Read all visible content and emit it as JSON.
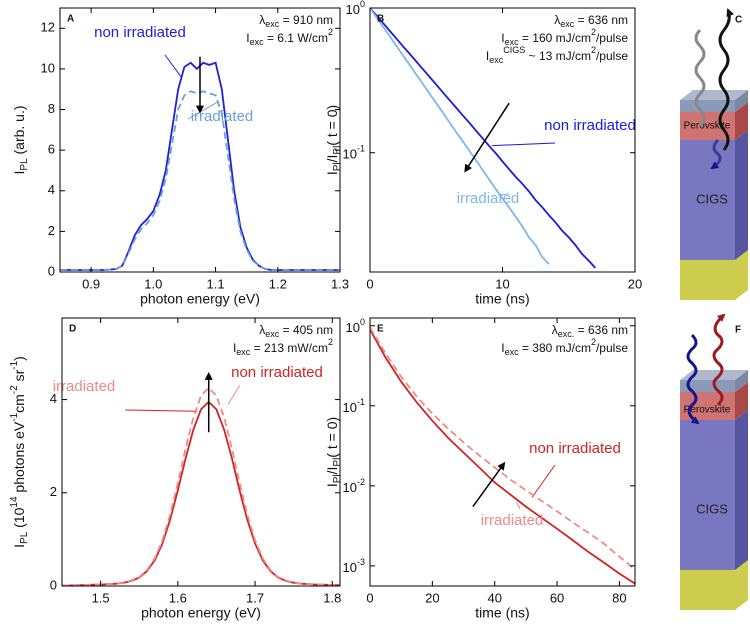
{
  "chart_data": [
    {
      "type": "line",
      "panel_label": "A",
      "xlabel": "photon energy (eV)",
      "ylabel": [
        {
          "t": "I"
        },
        {
          "t": "PL",
          "s": "sub"
        },
        {
          "t": " (arb. u.)"
        }
      ],
      "annotations": [
        [
          {
            "t": "λ"
          },
          {
            "t": "exc",
            "s": "sub"
          },
          {
            "t": " = 910 nm"
          }
        ],
        [
          {
            "t": "I"
          },
          {
            "t": "exc",
            "s": "sub"
          },
          {
            "t": " = 6.1 W/cm"
          },
          {
            "t": "2",
            "s": "sup"
          }
        ]
      ],
      "xlim": [
        0.85,
        1.3
      ],
      "xticks": [
        0.9,
        {
          "value": 1,
          "label": "1.0"
        },
        1.1,
        1.2,
        1.3
      ],
      "ylim": [
        0,
        13
      ],
      "yticks": [
        0,
        2,
        4,
        6,
        8,
        10,
        12
      ],
      "x": [
        0.85,
        0.86,
        0.87,
        0.88,
        0.89,
        0.9,
        0.91,
        0.92,
        0.93,
        0.94,
        0.95,
        0.96,
        0.97,
        0.98,
        0.99,
        1,
        1.01,
        1.02,
        1.03,
        1.04,
        1.05,
        1.06,
        1.07,
        1.08,
        1.09,
        1.1,
        1.11,
        1.12,
        1.13,
        1.14,
        1.15,
        1.16,
        1.17,
        1.18,
        1.19,
        1.2,
        1.21,
        1.22,
        1.23,
        1.24,
        1.25,
        1.26,
        1.27,
        1.28,
        1.29,
        1.3
      ],
      "series": [
        {
          "name": "non irradiated",
          "color": "#2020d8",
          "style": "solid",
          "values": [
            0.1,
            0.1,
            0.1,
            0.1,
            0.1,
            0.1,
            0.1,
            0.1,
            0.12,
            0.15,
            0.3,
            1.0,
            1.8,
            2.3,
            2.6,
            3.0,
            3.8,
            5.0,
            7.0,
            9.0,
            10.1,
            10.3,
            10.0,
            10.3,
            10.2,
            10.3,
            9.0,
            6.5,
            4.0,
            2.2,
            1.2,
            0.6,
            0.3,
            0.15,
            0.1,
            0.1,
            0.1,
            0.1,
            0.1,
            0.1,
            0.1,
            0.1,
            0.1,
            0.1,
            0.1,
            0.1
          ]
        },
        {
          "name": "irradiated",
          "color": "#6a9fdc",
          "style": "dashed",
          "values": [
            0.1,
            0.1,
            0.1,
            0.1,
            0.1,
            0.1,
            0.1,
            0.1,
            0.12,
            0.15,
            0.3,
            0.9,
            1.6,
            2.1,
            2.4,
            2.8,
            3.5,
            4.6,
            6.3,
            8.0,
            8.7,
            8.9,
            8.8,
            8.9,
            8.8,
            8.7,
            7.8,
            5.7,
            3.6,
            2.0,
            1.1,
            0.55,
            0.3,
            0.15,
            0.1,
            0.1,
            0.1,
            0.1,
            0.1,
            0.1,
            0.1,
            0.1,
            0.1,
            0.1,
            0.1,
            0.1
          ]
        }
      ]
    },
    {
      "type": "line",
      "panel_label": "B",
      "yscale": "log",
      "xlabel": "time (ns)",
      "ylabel": [
        {
          "t": "I"
        },
        {
          "t": "Pl",
          "s": "sub"
        },
        {
          "t": "/I"
        },
        {
          "t": "Pl",
          "s": "sub"
        },
        {
          "t": "( t = 0)"
        }
      ],
      "annotations": [
        [
          {
            "t": "λ"
          },
          {
            "t": "exc",
            "s": "sub"
          },
          {
            "t": " = 636 nm"
          }
        ],
        [
          {
            "t": "I"
          },
          {
            "t": "exc",
            "s": "sub"
          },
          {
            "t": " =  160 mJ/cm"
          },
          {
            "t": "2",
            "s": "sup"
          },
          {
            "t": "/pulse"
          }
        ],
        [
          {
            "t": "I"
          },
          {
            "t": "exc",
            "s": "sub"
          },
          {
            "t": "CIGS",
            "s": "sup"
          },
          {
            "t": " ~ 13 mJ/cm"
          },
          {
            "t": "2",
            "s": "sup"
          },
          {
            "t": "/pulse"
          }
        ]
      ],
      "xlim": [
        0,
        20
      ],
      "xticks": [
        0,
        10,
        20
      ],
      "ylim": [
        0.015,
        1
      ],
      "yticks": [
        {
          "value": 1,
          "label": [
            {
              "t": "10"
            },
            {
              "t": "0",
              "s": "sup"
            }
          ]
        },
        {
          "value": 0.1,
          "label": [
            {
              "t": "10"
            },
            {
              "t": "-1",
              "s": "sup"
            }
          ]
        }
      ],
      "series": [
        {
          "name": "non irradiated",
          "color": "#1a1ae0",
          "style": "solid",
          "x": [
            0,
            0.5,
            1,
            1.5,
            2,
            2.5,
            3,
            3.5,
            4,
            4.5,
            5,
            5.5,
            6,
            6.5,
            7,
            7.5,
            8,
            8.5,
            9,
            9.5,
            10,
            10.5,
            11,
            11.5,
            12,
            12.5,
            13,
            13.5,
            14,
            14.5,
            15,
            15.5,
            16,
            16.5,
            17
          ],
          "values": [
            1,
            0.885,
            0.784,
            0.694,
            0.614,
            0.543,
            0.481,
            0.426,
            0.377,
            0.334,
            0.295,
            0.261,
            0.231,
            0.205,
            0.181,
            0.161,
            0.142,
            0.126,
            0.111,
            0.099,
            0.087,
            0.077,
            0.068,
            0.061,
            0.054,
            0.047,
            0.042,
            0.037,
            0.033,
            0.029,
            0.026,
            0.023,
            0.02,
            0.018,
            0.016
          ]
        },
        {
          "name": "irradiated",
          "color": "#7db6ee",
          "style": "solid",
          "x": [
            0,
            0.5,
            1,
            1.5,
            2,
            2.5,
            3,
            3.5,
            4,
            4.5,
            5,
            5.5,
            6,
            6.5,
            7,
            7.5,
            8,
            8.5,
            9,
            9.5,
            10,
            10.5,
            11,
            11.5,
            12,
            12.5,
            13,
            13.5
          ],
          "values": [
            1,
            0.86,
            0.739,
            0.635,
            0.546,
            0.469,
            0.403,
            0.346,
            0.298,
            0.256,
            0.22,
            0.189,
            0.162,
            0.139,
            0.12,
            0.103,
            0.089,
            0.076,
            0.065,
            0.056,
            0.048,
            0.042,
            0.036,
            0.031,
            0.026,
            0.023,
            0.019,
            0.017
          ]
        }
      ]
    },
    {
      "type": "line",
      "panel_label": "D",
      "xlabel": "photon energy (eV)",
      "ylabel": [
        {
          "t": "I"
        },
        {
          "t": "PL",
          "s": "sub"
        },
        {
          "t": " (10"
        },
        {
          "t": "14",
          "s": "sup"
        },
        {
          "t": " photons eV"
        },
        {
          "t": "-1",
          "s": "sup"
        },
        {
          "t": "cm"
        },
        {
          "t": "-2",
          "s": "sup"
        },
        {
          "t": " sr"
        },
        {
          "t": "-1",
          "s": "sup"
        },
        {
          "t": ")"
        }
      ],
      "annotations": [
        [
          {
            "t": "λ"
          },
          {
            "t": "exc",
            "s": "sub"
          },
          {
            "t": " = 405 nm"
          }
        ],
        [
          {
            "t": "I"
          },
          {
            "t": "exc",
            "s": "sub"
          },
          {
            "t": " = 213 mW/cm"
          },
          {
            "t": "2",
            "s": "sup"
          }
        ]
      ],
      "xlim": [
        1.45,
        1.81
      ],
      "xticks": [
        1.5,
        1.6,
        1.7,
        1.8
      ],
      "ylim": [
        0,
        5.75
      ],
      "yticks": [
        0,
        2,
        4
      ],
      "x": [
        1.45,
        1.46,
        1.47,
        1.48,
        1.49,
        1.5,
        1.51,
        1.52,
        1.53,
        1.54,
        1.55,
        1.56,
        1.57,
        1.58,
        1.59,
        1.6,
        1.61,
        1.62,
        1.63,
        1.64,
        1.65,
        1.66,
        1.67,
        1.68,
        1.69,
        1.7,
        1.71,
        1.72,
        1.73,
        1.74,
        1.75,
        1.76,
        1.77,
        1.78,
        1.79,
        1.8,
        1.81
      ],
      "series": [
        {
          "name": "non irradiated",
          "color": "#d42222",
          "style": "solid",
          "values": [
            0.01,
            0.01,
            0.02,
            0.02,
            0.03,
            0.03,
            0.04,
            0.05,
            0.07,
            0.11,
            0.18,
            0.32,
            0.55,
            0.91,
            1.42,
            2.05,
            2.74,
            3.35,
            3.79,
            3.95,
            3.79,
            3.35,
            2.74,
            2.05,
            1.42,
            0.91,
            0.55,
            0.32,
            0.18,
            0.11,
            0.07,
            0.05,
            0.04,
            0.03,
            0.03,
            0.02,
            0.02
          ]
        },
        {
          "name": "irradiated",
          "color": "#ef8a8a",
          "style": "dashed",
          "values": [
            0.01,
            0.01,
            0.02,
            0.02,
            0.03,
            0.03,
            0.04,
            0.05,
            0.07,
            0.12,
            0.19,
            0.34,
            0.59,
            0.98,
            1.53,
            2.21,
            2.95,
            3.61,
            4.08,
            4.25,
            4.08,
            3.61,
            2.95,
            2.21,
            1.53,
            0.98,
            0.59,
            0.34,
            0.19,
            0.12,
            0.07,
            0.05,
            0.04,
            0.03,
            0.03,
            0.02,
            0.02
          ]
        }
      ]
    },
    {
      "type": "line",
      "panel_label": "E",
      "yscale": "log",
      "xlabel": "time (ns)",
      "ylabel": [
        {
          "t": "I"
        },
        {
          "t": "Pl",
          "s": "sub"
        },
        {
          "t": "/I"
        },
        {
          "t": "Pl",
          "s": "sub"
        },
        {
          "t": "( t = 0)"
        }
      ],
      "annotations": [
        [
          {
            "t": "λ"
          },
          {
            "t": "exc.",
            "s": "sub"
          },
          {
            "t": " = 636 nm"
          }
        ],
        [
          {
            "t": "I"
          },
          {
            "t": "exc",
            "s": "sub"
          },
          {
            "t": " =  380 mJ/cm"
          },
          {
            "t": "2",
            "s": "sup"
          },
          {
            "t": "/pulse"
          }
        ]
      ],
      "xlim": [
        0,
        85
      ],
      "xticks": [
        0,
        20,
        40,
        60,
        80
      ],
      "ylim": [
        0.00056,
        1.25
      ],
      "yticks": [
        {
          "value": 1,
          "label": [
            {
              "t": "10"
            },
            {
              "t": "0",
              "s": "sup"
            }
          ]
        },
        {
          "value": 0.1,
          "label": [
            {
              "t": "10"
            },
            {
              "t": "-1",
              "s": "sup"
            }
          ]
        },
        {
          "value": 0.01,
          "label": [
            {
              "t": "10"
            },
            {
              "t": "-2",
              "s": "sup"
            }
          ]
        },
        {
          "value": 0.001,
          "label": [
            {
              "t": "10"
            },
            {
              "t": "-3",
              "s": "sup"
            }
          ]
        }
      ],
      "x": [
        0,
        5,
        10,
        15,
        20,
        25,
        30,
        35,
        40,
        45,
        50,
        55,
        60,
        65,
        70,
        75,
        80,
        85
      ],
      "series": [
        {
          "name": "non irradiated",
          "color": "#d42222",
          "style": "solid",
          "values": [
            0.9,
            0.4,
            0.2,
            0.11,
            0.065,
            0.04,
            0.026,
            0.017,
            0.011,
            0.0078,
            0.0055,
            0.004,
            0.0029,
            0.0021,
            0.0015,
            0.0011,
            0.0008,
            0.0006
          ]
        },
        {
          "name": "irradiated",
          "color": "#ef8a8a",
          "style": "dashed",
          "values": [
            0.95,
            0.45,
            0.23,
            0.13,
            0.08,
            0.052,
            0.035,
            0.024,
            0.017,
            0.012,
            0.0088,
            0.0065,
            0.0048,
            0.0035,
            0.0026,
            0.0019,
            0.0013,
            0.0009
          ]
        }
      ]
    }
  ],
  "diagrams": [
    {
      "panel_label": "C",
      "perovskite": "Perovskite",
      "cigs": "CIGS"
    },
    {
      "panel_label": "F",
      "perovskite": "Perovskite",
      "cigs": "CIGS"
    }
  ]
}
